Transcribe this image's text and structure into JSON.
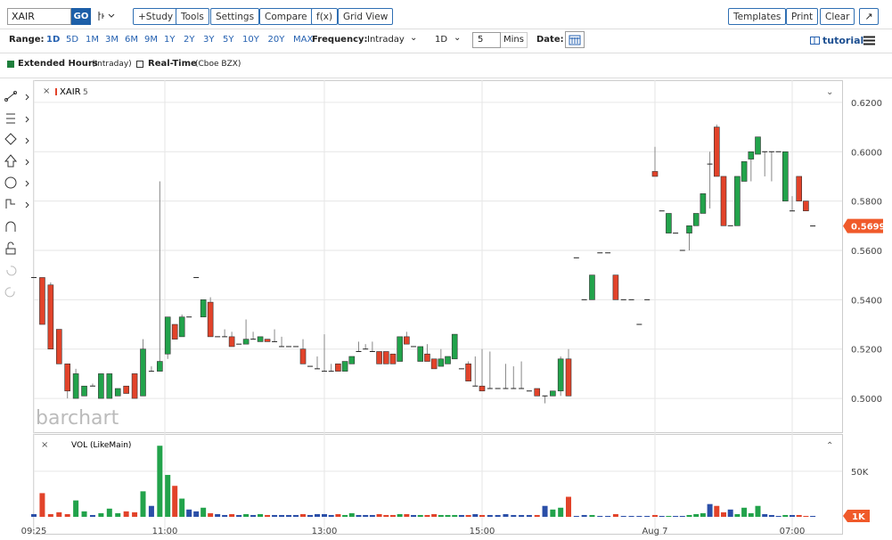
{
  "toolbar": {
    "symbol": "XAIR",
    "go": "GO",
    "buttons": [
      "+Study",
      "Tools",
      "Settings",
      "Compare",
      "f(x)",
      "Grid View"
    ],
    "right_buttons": [
      "Templates",
      "Print",
      "Clear"
    ]
  },
  "range_bar": {
    "range_label": "Range:",
    "ranges": [
      "1D",
      "5D",
      "1M",
      "3M",
      "6M",
      "9M",
      "1Y",
      "2Y",
      "3Y",
      "5Y",
      "10Y",
      "20Y",
      "MAX"
    ],
    "active_range": "1D",
    "frequency_label": "Frequency:",
    "frequency": "Intraday",
    "period": "1D",
    "interval": 5,
    "interval_unit": "Mins",
    "date_label": "Date:",
    "tutorial": "tutorial"
  },
  "options": {
    "extended": "Extended Hours",
    "extended_note": "(Intraday)",
    "realtime": "Real-Time",
    "realtime_note": "(Cboe BZX)"
  },
  "chart_data": {
    "type": "candlestick",
    "symbol_label": "XAIR",
    "interval_label": "5",
    "watermark": "barchart",
    "colors": {
      "up": "#22a34b",
      "down": "#e2432a",
      "neutral": "#2b4fa8"
    },
    "ylim": [
      0.4863,
      0.629
    ],
    "yticks": [
      {
        "value": 0.62,
        "label": "0.6200"
      },
      {
        "value": 0.6,
        "label": "0.6000"
      },
      {
        "value": 0.58,
        "label": "0.5800"
      },
      {
        "value": 0.56,
        "label": "0.5600"
      },
      {
        "value": 0.54,
        "label": "0.5400"
      },
      {
        "value": 0.52,
        "label": "0.5200"
      },
      {
        "value": 0.5,
        "label": "0.5000"
      }
    ],
    "last_price": {
      "value": 0.5699,
      "label": "0.5699"
    },
    "xticks": [
      {
        "value": 0,
        "label": "09:25"
      },
      {
        "value": 15.6,
        "label": "11:00"
      },
      {
        "value": 38,
        "label": "13:00"
      },
      {
        "value": 61,
        "label": "15:00"
      },
      {
        "value": 83,
        "label": "Aug 7"
      },
      {
        "value": 103,
        "label": "07:00"
      }
    ],
    "ohlc": [
      [
        0.549,
        0.549,
        0.549,
        0.549
      ],
      [
        0.549,
        0.549,
        0.53,
        0.53
      ],
      [
        0.546,
        0.547,
        0.52,
        0.52
      ],
      [
        0.528,
        0.528,
        0.514,
        0.514
      ],
      [
        0.514,
        0.514,
        0.5,
        0.503
      ],
      [
        0.5,
        0.512,
        0.5,
        0.51
      ],
      [
        0.501,
        0.505,
        0.501,
        0.505
      ],
      [
        0.505,
        0.506,
        0.505,
        0.505
      ],
      [
        0.5,
        0.51,
        0.5,
        0.51
      ],
      [
        0.5,
        0.51,
        0.5,
        0.51
      ],
      [
        0.501,
        0.504,
        0.501,
        0.504
      ],
      [
        0.505,
        0.505,
        0.502,
        0.502
      ],
      [
        0.51,
        0.51,
        0.5,
        0.5
      ],
      [
        0.501,
        0.524,
        0.501,
        0.52
      ],
      [
        0.511,
        0.513,
        0.511,
        0.511
      ],
      [
        0.511,
        0.588,
        0.511,
        0.515
      ],
      [
        0.518,
        0.533,
        0.516,
        0.533
      ],
      [
        0.53,
        0.53,
        0.524,
        0.524
      ],
      [
        0.525,
        0.534,
        0.525,
        0.533
      ],
      [
        0.533,
        0.533,
        0.533,
        0.533
      ],
      [
        0.549,
        0.549,
        0.549,
        0.549
      ],
      [
        0.533,
        0.54,
        0.533,
        0.54
      ],
      [
        0.539,
        0.541,
        0.525,
        0.525
      ],
      [
        0.525,
        0.525,
        0.525,
        0.525
      ],
      [
        0.525,
        0.528,
        0.525,
        0.525
      ],
      [
        0.525,
        0.527,
        0.521,
        0.521
      ],
      [
        0.522,
        0.522,
        0.522,
        0.522
      ],
      [
        0.522,
        0.532,
        0.522,
        0.524
      ],
      [
        0.524,
        0.527,
        0.524,
        0.524
      ],
      [
        0.523,
        0.525,
        0.523,
        0.525
      ],
      [
        0.524,
        0.524,
        0.523,
        0.523
      ],
      [
        0.523,
        0.528,
        0.523,
        0.523
      ],
      [
        0.521,
        0.525,
        0.521,
        0.521
      ],
      [
        0.521,
        0.521,
        0.521,
        0.521
      ],
      [
        0.521,
        0.521,
        0.521,
        0.521
      ],
      [
        0.52,
        0.524,
        0.514,
        0.514
      ],
      [
        0.513,
        0.513,
        0.513,
        0.513
      ],
      [
        0.512,
        0.517,
        0.512,
        0.512
      ],
      [
        0.511,
        0.526,
        0.511,
        0.511
      ],
      [
        0.511,
        0.514,
        0.511,
        0.511
      ],
      [
        0.514,
        0.514,
        0.511,
        0.511
      ],
      [
        0.511,
        0.515,
        0.511,
        0.515
      ],
      [
        0.514,
        0.517,
        0.514,
        0.517
      ],
      [
        0.519,
        0.523,
        0.519,
        0.519
      ],
      [
        0.52,
        0.522,
        0.52,
        0.52
      ],
      [
        0.519,
        0.523,
        0.519,
        0.519
      ],
      [
        0.519,
        0.519,
        0.514,
        0.514
      ],
      [
        0.519,
        0.519,
        0.514,
        0.514
      ],
      [
        0.518,
        0.518,
        0.514,
        0.514
      ],
      [
        0.515,
        0.525,
        0.515,
        0.525
      ],
      [
        0.525,
        0.527,
        0.522,
        0.522
      ],
      [
        0.521,
        0.521,
        0.521,
        0.521
      ],
      [
        0.515,
        0.521,
        0.515,
        0.521
      ],
      [
        0.518,
        0.522,
        0.515,
        0.515
      ],
      [
        0.516,
        0.516,
        0.512,
        0.512
      ],
      [
        0.513,
        0.52,
        0.513,
        0.516
      ],
      [
        0.514,
        0.517,
        0.514,
        0.517
      ],
      [
        0.516,
        0.526,
        0.516,
        0.526
      ],
      [
        0.512,
        0.512,
        0.512,
        0.512
      ],
      [
        0.514,
        0.515,
        0.507,
        0.507
      ],
      [
        0.505,
        0.517,
        0.505,
        0.505
      ],
      [
        0.505,
        0.52,
        0.503,
        0.503
      ],
      [
        0.504,
        0.519,
        0.504,
        0.504
      ],
      [
        0.504,
        0.504,
        0.504,
        0.504
      ],
      [
        0.504,
        0.514,
        0.504,
        0.504
      ],
      [
        0.504,
        0.513,
        0.504,
        0.504
      ],
      [
        0.504,
        0.515,
        0.504,
        0.504
      ],
      [
        0.503,
        0.503,
        0.503,
        0.503
      ],
      [
        0.504,
        0.504,
        0.501,
        0.501
      ],
      [
        0.501,
        0.501,
        0.498,
        0.501
      ],
      [
        0.501,
        0.503,
        0.501,
        0.503
      ],
      [
        0.503,
        0.517,
        0.501,
        0.516
      ],
      [
        0.516,
        0.52,
        0.501,
        0.501
      ],
      [
        0.557,
        0.557,
        0.557,
        0.557
      ],
      [
        0.54,
        0.54,
        0.54,
        0.54
      ],
      [
        0.54,
        0.55,
        0.54,
        0.55
      ],
      [
        0.559,
        0.559,
        0.559,
        0.559
      ],
      [
        0.559,
        0.559,
        0.559,
        0.559
      ],
      [
        0.55,
        0.55,
        0.54,
        0.54
      ],
      [
        0.54,
        0.54,
        0.54,
        0.54
      ],
      [
        0.54,
        0.54,
        0.54,
        0.54
      ],
      [
        0.53,
        0.53,
        0.53,
        0.53
      ],
      [
        0.54,
        0.54,
        0.54,
        0.54
      ],
      [
        0.592,
        0.602,
        0.59,
        0.59
      ],
      [
        0.576,
        0.576,
        0.576,
        0.576
      ],
      [
        0.567,
        0.575,
        0.567,
        0.575
      ],
      [
        0.567,
        0.567,
        0.567,
        0.567
      ],
      [
        0.56,
        0.56,
        0.56,
        0.56
      ],
      [
        0.567,
        0.57,
        0.56,
        0.57
      ],
      [
        0.57,
        0.575,
        0.57,
        0.575
      ],
      [
        0.575,
        0.583,
        0.575,
        0.583
      ],
      [
        0.595,
        0.6,
        0.577,
        0.595
      ],
      [
        0.61,
        0.611,
        0.59,
        0.59
      ],
      [
        0.59,
        0.59,
        0.57,
        0.57
      ],
      [
        0.57,
        0.57,
        0.57,
        0.57
      ],
      [
        0.57,
        0.59,
        0.57,
        0.59
      ],
      [
        0.588,
        0.596,
        0.588,
        0.596
      ],
      [
        0.597,
        0.6,
        0.588,
        0.6
      ],
      [
        0.599,
        0.606,
        0.599,
        0.606
      ],
      [
        0.6,
        0.6,
        0.59,
        0.6
      ],
      [
        0.6,
        0.6,
        0.588,
        0.6
      ],
      [
        0.6,
        0.6,
        0.6,
        0.6
      ],
      [
        0.58,
        0.6,
        0.58,
        0.6
      ],
      [
        0.576,
        0.582,
        0.576,
        0.576
      ],
      [
        0.59,
        0.59,
        0.58,
        0.58
      ],
      [
        0.58,
        0.58,
        0.576,
        0.576
      ],
      [
        0.5699,
        0.5699,
        0.5699,
        0.5699
      ]
    ],
    "volume": {
      "title": "VOL (LikeMain)",
      "ylim": [
        0,
        88000
      ],
      "yticks": [
        {
          "value": 50000,
          "label": "50K"
        }
      ],
      "last": {
        "value": 1000,
        "label": "1K"
      },
      "values": [
        3000,
        26000,
        3000,
        5000,
        3000,
        18000,
        6000,
        2000,
        4000,
        9000,
        4000,
        6000,
        5000,
        28000,
        12000,
        78000,
        46000,
        34000,
        20000,
        8000,
        6000,
        10000,
        4000,
        3000,
        2000,
        3000,
        2000,
        3000,
        2000,
        3000,
        2000,
        2000,
        2000,
        2000,
        2000,
        3000,
        2000,
        3000,
        3000,
        2000,
        3000,
        2000,
        4000,
        2000,
        2000,
        2000,
        3000,
        2000,
        2000,
        3000,
        3000,
        2000,
        2000,
        2000,
        3000,
        2000,
        2000,
        2000,
        2000,
        2000,
        3000,
        2000,
        2000,
        2000,
        3000,
        2000,
        2000,
        2000,
        2000,
        12000,
        8000,
        10000,
        22000,
        1000,
        2000,
        2000,
        1000,
        1000,
        3000,
        1000,
        1000,
        1000,
        1000,
        2000,
        1000,
        1000,
        1000,
        1000,
        2000,
        3000,
        4000,
        14000,
        12000,
        5000,
        8000,
        3000,
        10000,
        4000,
        12000,
        3000,
        2000,
        1000,
        2000,
        2000,
        2000,
        1000,
        1000
      ]
    }
  }
}
